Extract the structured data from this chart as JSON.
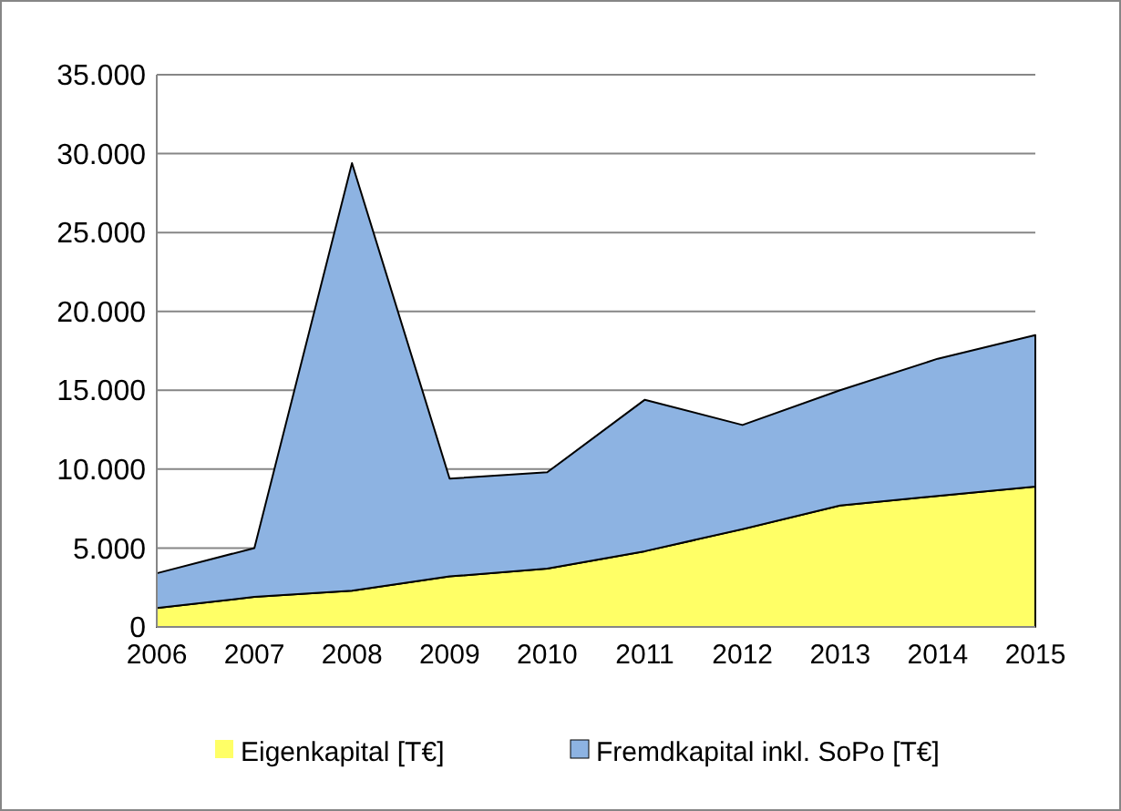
{
  "chart_data": {
    "type": "area",
    "stacked": true,
    "categories": [
      "2006",
      "2007",
      "2008",
      "2009",
      "2010",
      "2011",
      "2012",
      "2013",
      "2014",
      "2015"
    ],
    "series": [
      {
        "name": "Eigenkapital [T€]",
        "color": "#ffff66",
        "values": [
          1200,
          1900,
          2300,
          3200,
          3700,
          4800,
          6200,
          7700,
          8300,
          8900
        ]
      },
      {
        "name": "Fremdkapital inkl. SoPo [T€]",
        "color": "#8db3e2",
        "values": [
          2200,
          3100,
          27100,
          6200,
          6100,
          9600,
          6600,
          7300,
          8700,
          9600
        ]
      }
    ],
    "ylim": [
      0,
      35000
    ],
    "yticks": [
      {
        "value": 0,
        "label": "0"
      },
      {
        "value": 5000,
        "label": "5.000"
      },
      {
        "value": 10000,
        "label": "10.000"
      },
      {
        "value": 15000,
        "label": "15.000"
      },
      {
        "value": 20000,
        "label": "20.000"
      },
      {
        "value": 25000,
        "label": "25.000"
      },
      {
        "value": 30000,
        "label": "30.000"
      },
      {
        "value": 35000,
        "label": "35.000"
      }
    ],
    "grid": "y",
    "legend": "bottom"
  }
}
